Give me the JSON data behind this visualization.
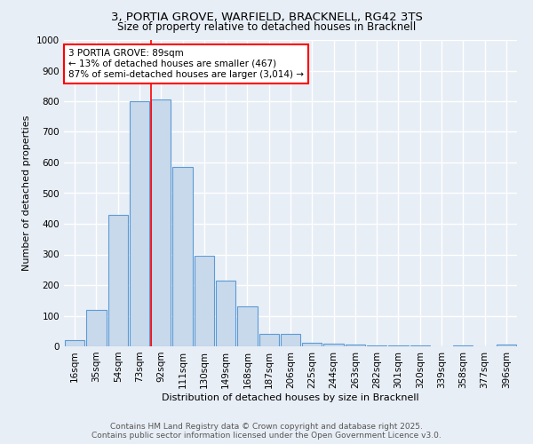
{
  "title_line1": "3, PORTIA GROVE, WARFIELD, BRACKNELL, RG42 3TS",
  "title_line2": "Size of property relative to detached houses in Bracknell",
  "xlabel": "Distribution of detached houses by size in Bracknell",
  "ylabel": "Number of detached properties",
  "categories": [
    "16sqm",
    "35sqm",
    "54sqm",
    "73sqm",
    "92sqm",
    "111sqm",
    "130sqm",
    "149sqm",
    "168sqm",
    "187sqm",
    "206sqm",
    "225sqm",
    "244sqm",
    "263sqm",
    "282sqm",
    "301sqm",
    "320sqm",
    "339sqm",
    "358sqm",
    "377sqm",
    "396sqm"
  ],
  "values": [
    20,
    120,
    430,
    800,
    805,
    585,
    295,
    215,
    130,
    40,
    40,
    12,
    8,
    5,
    3,
    3,
    2,
    1,
    2,
    1,
    5
  ],
  "bar_color": "#c8d9ec",
  "bar_edge_color": "#5b9bd5",
  "vline_color": "red",
  "vline_x_index": 4,
  "annotation_text": "3 PORTIA GROVE: 89sqm\n← 13% of detached houses are smaller (467)\n87% of semi-detached houses are larger (3,014) →",
  "annotation_box_color": "white",
  "annotation_box_edge": "red",
  "ylim": [
    0,
    1000
  ],
  "yticks": [
    0,
    100,
    200,
    300,
    400,
    500,
    600,
    700,
    800,
    900,
    1000
  ],
  "footer_line1": "Contains HM Land Registry data © Crown copyright and database right 2025.",
  "footer_line2": "Contains public sector information licensed under the Open Government Licence v3.0.",
  "bg_color": "#e8eef6",
  "grid_color": "white",
  "title_fontsize": 9.5,
  "subtitle_fontsize": 8.5,
  "axis_label_fontsize": 8,
  "tick_fontsize": 7.5,
  "annotation_fontsize": 7.5,
  "footer_fontsize": 6.5
}
